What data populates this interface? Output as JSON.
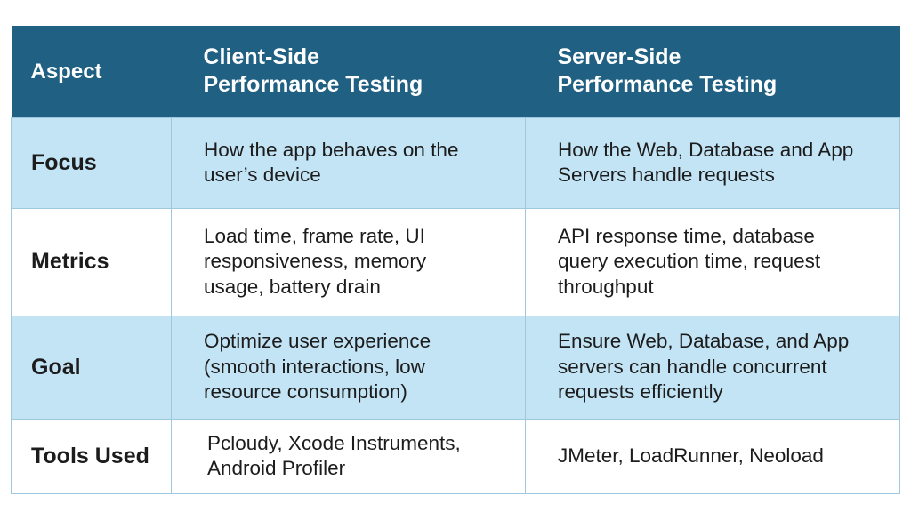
{
  "header": {
    "aspect": "Aspect",
    "client": "Client-Side\nPerformance Testing",
    "server": "Server-Side\nPerformance Testing"
  },
  "rows": [
    {
      "aspect": "Focus",
      "client": "How the app behaves on the user’s device",
      "server": "How the Web, Database and App Servers handle requests"
    },
    {
      "aspect": "Metrics",
      "client": "Load time, frame rate, UI responsiveness, memory usage, battery drain",
      "server": "API response time, database query execution time, request throughput"
    },
    {
      "aspect": "Goal",
      "client": "Optimize user experience (smooth interactions, low resource consumption)",
      "server": "Ensure Web, Database, and App servers can handle concurrent requests efficiently"
    },
    {
      "aspect": "Tools Used",
      "client": "Pcloudy, Xcode Instruments, Android Profiler",
      "server": "JMeter, LoadRunner, Neoload"
    }
  ],
  "colors": {
    "header_bg": "#1f6083",
    "shaded_row": "#c3e4f5",
    "plain_row": "#ffffff",
    "border": "#9fc7dd"
  }
}
